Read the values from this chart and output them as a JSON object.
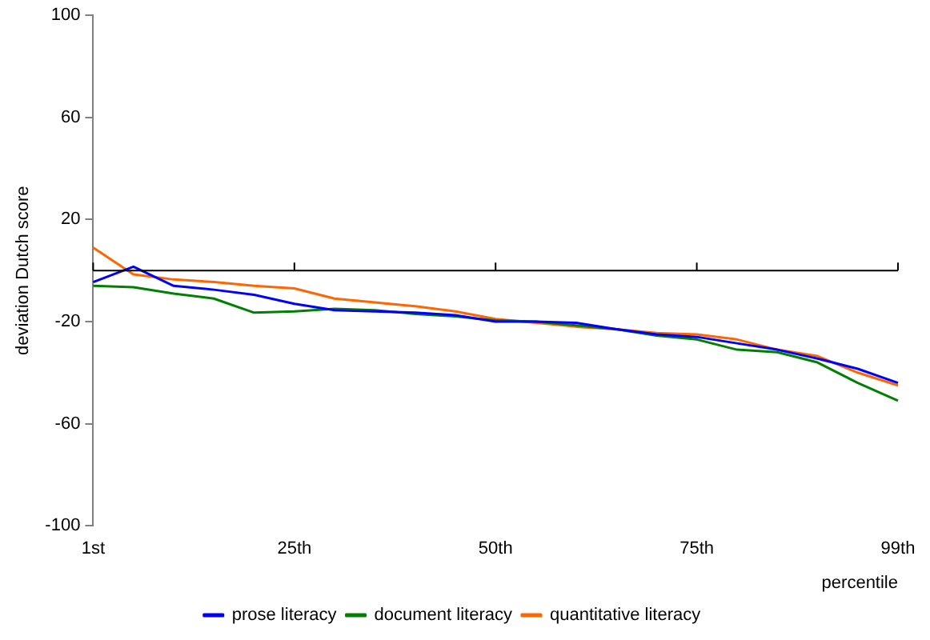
{
  "chart_data": {
    "type": "line",
    "ylabel": "deviation Dutch score",
    "xlabel": "percentile",
    "categories": [
      "1st",
      null,
      null,
      null,
      null,
      "25th",
      null,
      null,
      null,
      null,
      "50th",
      null,
      null,
      null,
      null,
      "75th",
      null,
      null,
      null,
      null,
      "99th"
    ],
    "series": [
      {
        "name": "prose literacy",
        "color": "#0000ff",
        "values": [
          -4.5,
          1.5,
          -6,
          -7.5,
          -9.5,
          -13,
          -15.5,
          -16,
          -16.5,
          -17.5,
          -20,
          -20,
          -20.5,
          -23,
          -25,
          -26,
          -28.5,
          -31,
          -34.5,
          -38.5,
          -44
        ]
      },
      {
        "name": "document literacy",
        "color": "#008000",
        "values": [
          -6,
          -6.5,
          -9,
          -11,
          -16.5,
          -16,
          -15,
          -15.5,
          -17,
          -18,
          -19.5,
          -20,
          -21.5,
          -23,
          -25.5,
          -27,
          -31,
          -32,
          -36,
          -44,
          -51
        ]
      },
      {
        "name": "quantitative literacy",
        "color": "#ff6600",
        "values": [
          9,
          -1.5,
          -3.5,
          -4.5,
          -6,
          -7,
          -11,
          -12.5,
          -14,
          -16,
          -19,
          -20.5,
          -22,
          -23,
          -24.5,
          -25,
          -27,
          -31,
          -33.5,
          -40,
          -45
        ]
      }
    ],
    "ylim": [
      -100,
      100
    ],
    "yticks": [
      -100,
      -60,
      -20,
      20,
      60,
      100
    ],
    "ref_lines": [
      {
        "axis": "y",
        "value": 0,
        "color": "#000000"
      }
    ],
    "grid": false,
    "legend": "bottom",
    "marker": "none",
    "line_style": "solid"
  }
}
